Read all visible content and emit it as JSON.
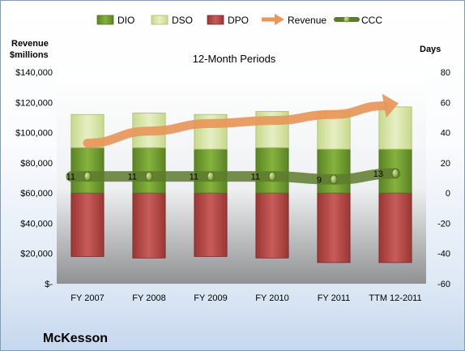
{
  "chart_data": {
    "type": "bar",
    "title": "12-Month Periods",
    "left_axis_label": [
      "Revenue",
      "$millions"
    ],
    "right_axis_label": "Days",
    "company": "McKesson",
    "categories": [
      "FY 2007",
      "FY 2008",
      "FY 2009",
      "FY 2010",
      "FY 2011",
      "TTM 12-2011"
    ],
    "left_ylim": [
      0,
      140000
    ],
    "left_ticks": [
      "$-",
      "$20,000",
      "$40,000",
      "$60,000",
      "$80,000",
      "$100,000",
      "$120,000",
      "$140,000"
    ],
    "right_ylim": [
      -60,
      80
    ],
    "right_ticks": [
      "-60",
      "-40",
      "-20",
      "0",
      "20",
      "40",
      "60",
      "80"
    ],
    "series": [
      {
        "name": "DIO",
        "axis": "right",
        "values": [
          30,
          30,
          29,
          30,
          29,
          29
        ],
        "color": "#6f9a2e"
      },
      {
        "name": "DSO",
        "axis": "right",
        "values": [
          22,
          23,
          23,
          24,
          25,
          28
        ],
        "color": "#d7e4a4"
      },
      {
        "name": "DPO",
        "axis": "right",
        "values": [
          -42,
          -43,
          -42,
          -43,
          -46,
          -46
        ],
        "color": "#b54745"
      },
      {
        "name": "Revenue",
        "axis": "left",
        "values": [
          93000,
          101000,
          106000,
          108000,
          112000,
          119000
        ],
        "color": "#e8965a"
      },
      {
        "name": "CCC",
        "axis": "right",
        "values": [
          11,
          11,
          11,
          11,
          9,
          13
        ],
        "color": "#5e7b2d"
      }
    ],
    "ccc_labels": [
      "11",
      "11",
      "11",
      "11",
      "9",
      "13"
    ],
    "legend_position": "top",
    "grid": false
  }
}
